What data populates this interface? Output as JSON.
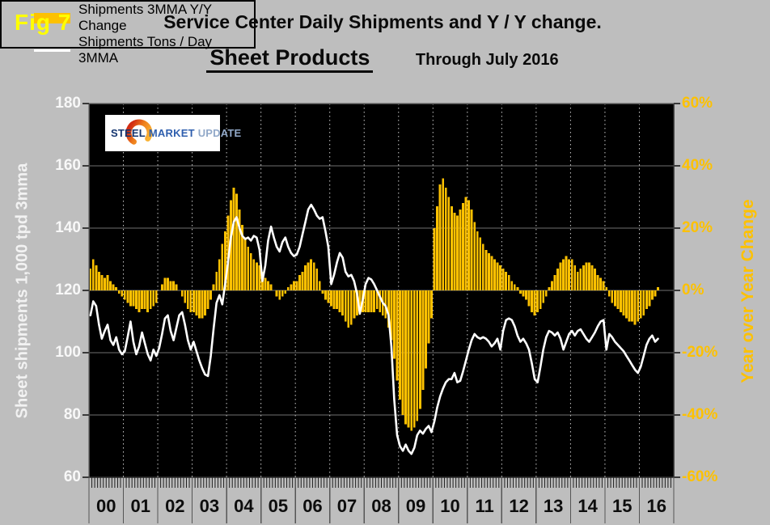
{
  "figure_label": "Fig 7",
  "title_line1": "Service Center Daily Shipments and Y / Y change.",
  "title_line2_main": "Sheet Products",
  "title_line2_sub": "Through July 2016",
  "logo": {
    "word1": "STEEL",
    "word2": "MARKET",
    "word3": "UPDATE"
  },
  "left_axis": {
    "title": "Sheet shipments 1,000 tpd 3mma",
    "ticks": [
      "180",
      "160",
      "140",
      "120",
      "100",
      "80",
      "60"
    ]
  },
  "right_axis": {
    "title": "Year over Year Change",
    "ticks": [
      "60%",
      "40%",
      "20%",
      "0%",
      "-20%",
      "-40%",
      "-60%"
    ]
  },
  "x_axis": {
    "years": [
      "00",
      "01",
      "02",
      "03",
      "04",
      "05",
      "06",
      "07",
      "08",
      "09",
      "10",
      "11",
      "12",
      "13",
      "14",
      "15",
      "16"
    ]
  },
  "legend": [
    {
      "label": "Shipments 3MMA Y/Y Change",
      "swatch": "bar"
    },
    {
      "label": "Shipments Tons / Day 3MMA",
      "swatch": "line"
    }
  ],
  "colors": {
    "page_bg": "#bebebe",
    "plot_bg": "#000000",
    "bar": "#fdc101",
    "line": "#ffffff",
    "figure_label": "#ffff00",
    "right_axis_text": "#fdc101",
    "left_axis_text": "#f8f8f8",
    "grid_h": "#6f6f6f",
    "grid_v": "#c9c9c9",
    "frame": "#4a4a4a"
  },
  "chart_data": {
    "type": "combo",
    "frequency": "monthly",
    "x_start": "2000-01",
    "x_end": "2016-07",
    "title": "Service Center Daily Shipments and Y / Y change. Sheet Products Through July 2016",
    "left_ylabel": "Sheet shipments 1,000 tpd 3mma",
    "right_ylabel": "Year over Year Change",
    "left_ylim": [
      60,
      180
    ],
    "right_ylim": [
      -60,
      60
    ],
    "legend_position": "bottom-left-inside",
    "grid": true,
    "series": [
      {
        "name": "Shipments 3MMA Y/Y Change",
        "type": "bar",
        "axis": "right",
        "unit": "%",
        "values": [
          7,
          10,
          8,
          6,
          5,
          4,
          5,
          3,
          2,
          1,
          -1,
          -2,
          -3,
          -4,
          -5,
          -5,
          -6,
          -7,
          -6,
          -6,
          -7,
          -6,
          -5,
          -4,
          0,
          2,
          4,
          4,
          3,
          3,
          2,
          0,
          -2,
          -4,
          -6,
          -7,
          -7,
          -8,
          -9,
          -9,
          -8,
          -6,
          -3,
          2,
          6,
          10,
          15,
          19,
          24,
          29,
          33,
          31,
          26,
          21,
          17,
          14,
          12,
          10,
          9,
          8,
          6,
          4,
          3,
          2,
          0,
          -2,
          -3,
          -2,
          -1,
          1,
          2,
          3,
          3,
          5,
          6,
          8,
          9,
          10,
          9,
          7,
          3,
          -1,
          -3,
          -4,
          -5,
          -6,
          -6,
          -7,
          -8,
          -10,
          -12,
          -11,
          -9,
          -8,
          -7,
          -7,
          -7,
          -7,
          -7,
          -7,
          -6,
          -7,
          -8,
          -9,
          -12,
          -16,
          -22,
          -29,
          -35,
          -40,
          -43,
          -44,
          -45,
          -44,
          -42,
          -38,
          -32,
          -25,
          -17,
          -9,
          20,
          27,
          34,
          36,
          33,
          30,
          27,
          25,
          24,
          26,
          28,
          30,
          29,
          26,
          22,
          19,
          17,
          15,
          13,
          12,
          11,
          10,
          9,
          8,
          7,
          6,
          5,
          3,
          2,
          1,
          -1,
          -2,
          -3,
          -5,
          -7,
          -8,
          -7,
          -6,
          -4,
          -2,
          1,
          3,
          5,
          7,
          9,
          10,
          11,
          10,
          10,
          8,
          6,
          7,
          8,
          9,
          9,
          8,
          7,
          5,
          4,
          3,
          1,
          -2,
          -4,
          -5,
          -6,
          -7,
          -8,
          -9,
          -10,
          -10,
          -11,
          -10,
          -9,
          -8,
          -6,
          -5,
          -3,
          -2,
          1
        ]
      },
      {
        "name": "Shipments Tons / Day 3MMA",
        "type": "line",
        "axis": "left",
        "unit": "1,000 tpd",
        "values": [
          112,
          116.5,
          115,
          109,
          104.5,
          107,
          109,
          104,
          102.5,
          105,
          101,
          99.5,
          100.5,
          105,
          110,
          103.5,
          99.5,
          102,
          106.5,
          103,
          99.5,
          97.5,
          101,
          99,
          101.5,
          106,
          111,
          112,
          107,
          104,
          108,
          112,
          113,
          109,
          104,
          101,
          103.5,
          100.5,
          97.5,
          95,
          93,
          92.5,
          99,
          108,
          116,
          118.5,
          115.5,
          122,
          129,
          137,
          142,
          143.5,
          140,
          137.5,
          136.5,
          137,
          136,
          137.5,
          137,
          133,
          123,
          128,
          136,
          140.5,
          137,
          134,
          132.5,
          135.5,
          137,
          134,
          132,
          131,
          131.5,
          134,
          138,
          142,
          146,
          147.5,
          146,
          144,
          143,
          143.5,
          139,
          134,
          122,
          125,
          129,
          132,
          130.5,
          126,
          124.5,
          125,
          123,
          119,
          112.5,
          117,
          122,
          124,
          123.5,
          122,
          120,
          118,
          116,
          115,
          112,
          102,
          85,
          73.5,
          70,
          68.5,
          70.5,
          68.5,
          67.5,
          69.5,
          73.5,
          75,
          74,
          75.5,
          76.5,
          74.5,
          78,
          82.5,
          86,
          88.5,
          90.5,
          91.5,
          91.5,
          93.5,
          90.5,
          91,
          94,
          97.5,
          101,
          104,
          106,
          105,
          104.5,
          105,
          104.5,
          103.5,
          102,
          103,
          104.5,
          101,
          107,
          110.5,
          111,
          110.5,
          108.5,
          105.5,
          103.5,
          104.5,
          103,
          101,
          96.5,
          91.5,
          90.5,
          95.5,
          101,
          105,
          107,
          106.5,
          105.5,
          106.5,
          104.5,
          101,
          103.5,
          106,
          107,
          105.5,
          107,
          107.5,
          106,
          104.5,
          103.5,
          105,
          106.5,
          108.5,
          110,
          110.5,
          101,
          106,
          105,
          103.5,
          102.5,
          101.5,
          100.5,
          99,
          97.5,
          96,
          94.5,
          93.5,
          95.5,
          99,
          102.5,
          104.5,
          105.5,
          103.5,
          104.5
        ]
      }
    ]
  }
}
